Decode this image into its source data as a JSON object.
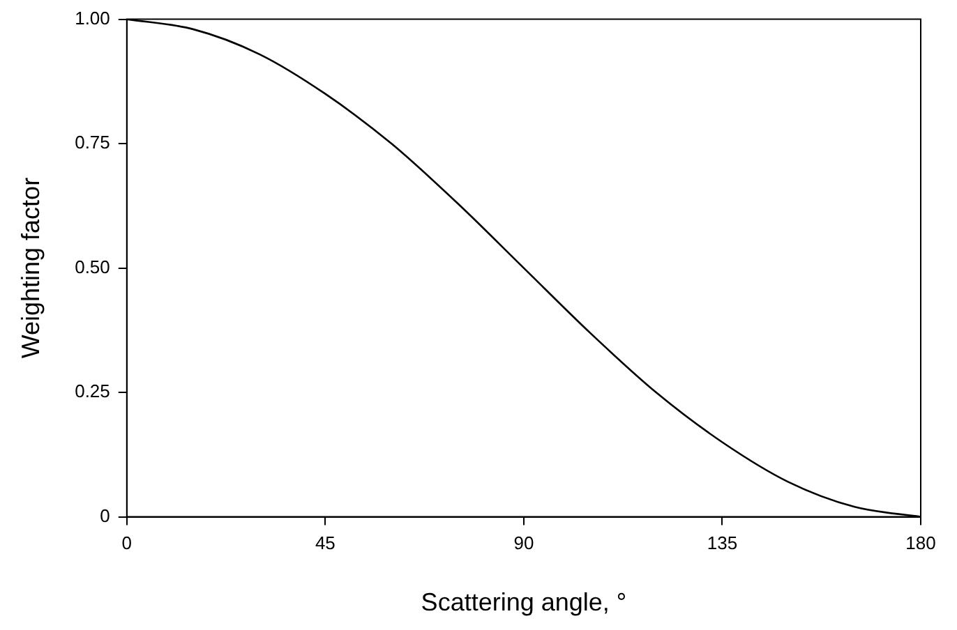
{
  "chart_data": {
    "type": "line",
    "xlabel": "Scattering angle, °",
    "ylabel": "Weighting factor",
    "x": [
      0,
      15,
      30,
      45,
      60,
      75,
      90,
      105,
      120,
      135,
      150,
      165,
      180
    ],
    "series": [
      {
        "color": "#000000",
        "values": [
          1,
          0.98,
          0.93,
          0.85,
          0.75,
          0.63,
          0.5,
          0.37,
          0.25,
          0.15,
          0.07,
          0.02,
          0
        ]
      }
    ],
    "xlim": [
      0,
      180
    ],
    "xticks": [
      0,
      45,
      90,
      135,
      180
    ],
    "ylim": [
      0,
      1
    ],
    "yticks": [
      {
        "value": 0,
        "label": "0"
      },
      {
        "value": 0.25,
        "label": "0.25"
      },
      {
        "value": 0.5,
        "label": "0.50"
      },
      {
        "value": 0.75,
        "label": "0.75"
      },
      {
        "value": 1,
        "label": "1.00"
      }
    ],
    "grid": false,
    "legend": false,
    "marker": "none",
    "line_style": "solid"
  }
}
